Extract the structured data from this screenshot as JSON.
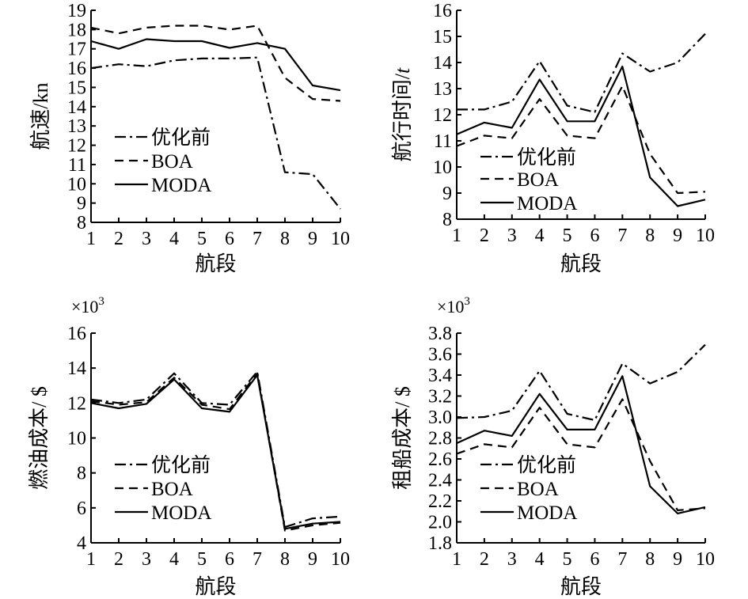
{
  "figure": {
    "colors": {
      "ink": "#000000",
      "background": "#ffffff"
    }
  },
  "chart_data": [
    {
      "type": "line",
      "id": "speed",
      "xlabel": "航段",
      "ylabel": "航速/kn",
      "xlim": [
        1,
        10
      ],
      "ylim": [
        8,
        19
      ],
      "xticks": [
        1,
        2,
        3,
        4,
        5,
        6,
        7,
        8,
        9,
        10
      ],
      "yticks": [
        8,
        9,
        10,
        11,
        12,
        13,
        14,
        15,
        16,
        17,
        18,
        19
      ],
      "multiplier": "",
      "legend": {
        "position": "bottom-left",
        "entries": [
          "优化前",
          "BOA",
          "MODA"
        ]
      },
      "x": [
        1,
        2,
        3,
        4,
        5,
        6,
        7,
        8,
        9,
        10
      ],
      "series": [
        {
          "name": "优化前",
          "style": "dashdot",
          "values": [
            16.0,
            16.2,
            16.1,
            16.4,
            16.5,
            16.5,
            16.55,
            10.6,
            10.5,
            8.7
          ]
        },
        {
          "name": "BOA",
          "style": "dash",
          "values": [
            18.1,
            17.8,
            18.1,
            18.2,
            18.2,
            18.0,
            18.2,
            15.5,
            14.4,
            14.3
          ]
        },
        {
          "name": "MODA",
          "style": "solid",
          "values": [
            17.4,
            17.0,
            17.5,
            17.4,
            17.4,
            17.05,
            17.3,
            17.0,
            15.1,
            14.85
          ]
        }
      ]
    },
    {
      "type": "line",
      "id": "time",
      "xlabel": "航段",
      "ylabel": "航行时间/",
      "ylabel_italic": "t",
      "xlim": [
        1,
        10
      ],
      "ylim": [
        8,
        16
      ],
      "xticks": [
        1,
        2,
        3,
        4,
        5,
        6,
        7,
        8,
        9,
        10
      ],
      "yticks": [
        8,
        9,
        10,
        11,
        12,
        13,
        14,
        15,
        16
      ],
      "multiplier": "",
      "legend": {
        "position": "bottom-left",
        "entries": [
          "优化前",
          "BOA",
          "MODA"
        ]
      },
      "x": [
        1,
        2,
        3,
        4,
        5,
        6,
        7,
        8,
        9,
        10
      ],
      "series": [
        {
          "name": "优化前",
          "style": "dashdot",
          "values": [
            12.2,
            12.2,
            12.5,
            14.05,
            12.35,
            12.1,
            14.35,
            13.65,
            14.0,
            15.1
          ]
        },
        {
          "name": "BOA",
          "style": "dash",
          "values": [
            10.8,
            11.2,
            11.1,
            12.6,
            11.2,
            11.1,
            13.1,
            10.5,
            9.0,
            9.05
          ]
        },
        {
          "name": "MODA",
          "style": "solid",
          "values": [
            11.25,
            11.7,
            11.5,
            13.35,
            11.75,
            11.75,
            13.85,
            9.6,
            8.5,
            8.75
          ]
        }
      ]
    },
    {
      "type": "line",
      "id": "fuel",
      "xlabel": "航段",
      "ylabel": "燃油成本/ $",
      "xlim": [
        1,
        10
      ],
      "ylim": [
        4,
        16
      ],
      "xticks": [
        1,
        2,
        3,
        4,
        5,
        6,
        7,
        8,
        9,
        10
      ],
      "yticks": [
        4,
        6,
        8,
        10,
        12,
        14,
        16
      ],
      "multiplier": "×10",
      "multiplier_exp": "3",
      "legend": {
        "position": "bottom-left",
        "entries": [
          "优化前",
          "BOA",
          "MODA"
        ]
      },
      "x": [
        1,
        2,
        3,
        4,
        5,
        6,
        7,
        8,
        9,
        10
      ],
      "series": [
        {
          "name": "优化前",
          "style": "dashdot",
          "values": [
            12.2,
            12.0,
            12.2,
            13.7,
            12.0,
            11.9,
            13.8,
            4.9,
            5.4,
            5.5
          ]
        },
        {
          "name": "BOA",
          "style": "dash",
          "values": [
            12.1,
            11.9,
            12.05,
            13.45,
            11.9,
            11.65,
            13.7,
            4.7,
            5.0,
            5.15
          ]
        },
        {
          "name": "MODA",
          "style": "solid",
          "values": [
            12.0,
            11.7,
            11.95,
            13.35,
            11.7,
            11.5,
            13.6,
            4.8,
            5.1,
            5.2
          ]
        }
      ]
    },
    {
      "type": "line",
      "id": "charter",
      "xlabel": "航段",
      "ylabel": "租船成本/ $",
      "xlim": [
        1,
        10
      ],
      "ylim": [
        1.8,
        3.8
      ],
      "xticks": [
        1,
        2,
        3,
        4,
        5,
        6,
        7,
        8,
        9,
        10
      ],
      "yticks": [
        "1.8",
        "2.0",
        "2.2",
        "2.4",
        "2.6",
        "2.8",
        "3.0",
        "3.2",
        "3.4",
        "3.6",
        "3.8"
      ],
      "multiplier": "×10",
      "multiplier_exp": "3",
      "legend": {
        "position": "bottom-left",
        "entries": [
          "优化前",
          "BOA",
          "MODA"
        ]
      },
      "x": [
        1,
        2,
        3,
        4,
        5,
        6,
        7,
        8,
        9,
        10
      ],
      "series": [
        {
          "name": "优化前",
          "style": "dashdot",
          "values": [
            2.99,
            3.0,
            3.06,
            3.44,
            3.03,
            2.97,
            3.51,
            3.32,
            3.43,
            3.69
          ]
        },
        {
          "name": "BOA",
          "style": "dash",
          "values": [
            2.65,
            2.74,
            2.71,
            3.09,
            2.74,
            2.71,
            3.17,
            2.58,
            2.11,
            2.13
          ]
        },
        {
          "name": "MODA",
          "style": "solid",
          "values": [
            2.75,
            2.87,
            2.82,
            3.22,
            2.88,
            2.88,
            3.39,
            2.34,
            2.08,
            2.14
          ]
        }
      ]
    }
  ]
}
